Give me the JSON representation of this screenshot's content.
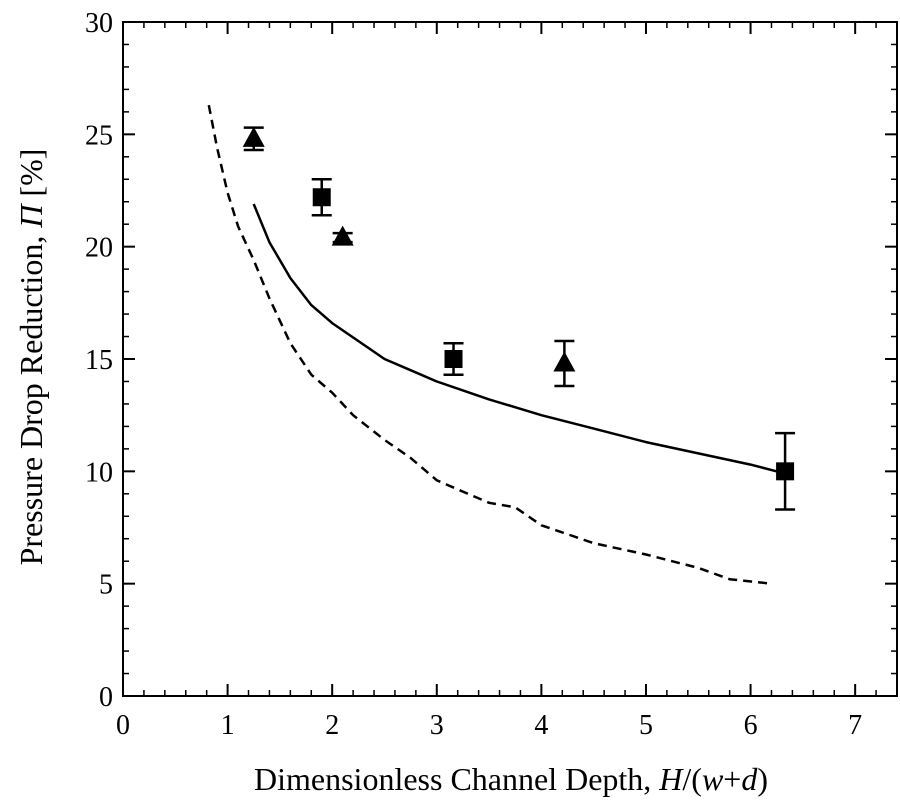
{
  "chart_data": {
    "type": "scatter",
    "xlabel": {
      "prefix": "Dimensionless Channel Depth, ",
      "parts": [
        {
          "t": "H",
          "i": true
        },
        {
          "t": "/(",
          "i": false
        },
        {
          "t": "w",
          "i": true
        },
        {
          "t": "+",
          "i": false
        },
        {
          "t": "d",
          "i": true
        },
        {
          "t": ")",
          "i": false
        }
      ]
    },
    "ylabel": {
      "prefix": "Pressure Drop Reduction, ",
      "symbol": "Π",
      "suffix": " [%]"
    },
    "xlim": [
      0,
      7.4
    ],
    "ylim": [
      0,
      30
    ],
    "x_ticks": [
      "0",
      "1",
      "2",
      "3",
      "4",
      "5",
      "6",
      "7"
    ],
    "y_ticks": [
      "0",
      "5",
      "10",
      "15",
      "20",
      "25",
      "30"
    ],
    "grid": false,
    "series": [
      {
        "marker": "triangle",
        "points": [
          {
            "x": 1.25,
            "y": 24.8,
            "err_low": 24.3,
            "err_high": 25.3
          },
          {
            "x": 2.1,
            "y": 20.4,
            "err_low": 20.2,
            "err_high": 20.6
          },
          {
            "x": 4.22,
            "y": 14.8,
            "err_low": 13.8,
            "err_high": 15.8
          }
        ]
      },
      {
        "marker": "square",
        "points": [
          {
            "x": 1.9,
            "y": 22.2,
            "err_low": 21.4,
            "err_high": 23.0
          },
          {
            "x": 3.16,
            "y": 15.0,
            "err_low": 14.3,
            "err_high": 15.7
          },
          {
            "x": 6.33,
            "y": 10.0,
            "err_low": 8.3,
            "err_high": 11.7
          }
        ]
      },
      {
        "marker": "solid-line",
        "points": [
          {
            "x": 1.25,
            "y": 21.9
          },
          {
            "x": 1.4,
            "y": 20.2
          },
          {
            "x": 1.6,
            "y": 18.6
          },
          {
            "x": 1.8,
            "y": 17.4
          },
          {
            "x": 2.0,
            "y": 16.6
          },
          {
            "x": 2.25,
            "y": 15.8
          },
          {
            "x": 2.5,
            "y": 15.0
          },
          {
            "x": 2.75,
            "y": 14.5
          },
          {
            "x": 3.0,
            "y": 14.0
          },
          {
            "x": 3.5,
            "y": 13.2
          },
          {
            "x": 4.0,
            "y": 12.5
          },
          {
            "x": 4.5,
            "y": 11.9
          },
          {
            "x": 5.0,
            "y": 11.3
          },
          {
            "x": 5.5,
            "y": 10.8
          },
          {
            "x": 6.0,
            "y": 10.3
          },
          {
            "x": 6.33,
            "y": 9.9
          }
        ]
      },
      {
        "marker": "dashed-line",
        "points": [
          {
            "x": 0.82,
            "y": 26.3
          },
          {
            "x": 0.9,
            "y": 24.4
          },
          {
            "x": 1.0,
            "y": 22.4
          },
          {
            "x": 1.1,
            "y": 20.9
          },
          {
            "x": 1.25,
            "y": 19.4
          },
          {
            "x": 1.4,
            "y": 17.7
          },
          {
            "x": 1.6,
            "y": 15.7
          },
          {
            "x": 1.8,
            "y": 14.3
          },
          {
            "x": 2.0,
            "y": 13.5
          },
          {
            "x": 2.2,
            "y": 12.5
          },
          {
            "x": 2.5,
            "y": 11.4
          },
          {
            "x": 2.75,
            "y": 10.6
          },
          {
            "x": 3.0,
            "y": 9.6
          },
          {
            "x": 3.25,
            "y": 9.1
          },
          {
            "x": 3.5,
            "y": 8.6
          },
          {
            "x": 3.75,
            "y": 8.4
          },
          {
            "x": 4.0,
            "y": 7.6
          },
          {
            "x": 4.25,
            "y": 7.2
          },
          {
            "x": 4.5,
            "y": 6.8
          },
          {
            "x": 5.0,
            "y": 6.3
          },
          {
            "x": 5.5,
            "y": 5.7
          },
          {
            "x": 5.8,
            "y": 5.2
          },
          {
            "x": 6.2,
            "y": 5.0
          }
        ]
      }
    ]
  }
}
